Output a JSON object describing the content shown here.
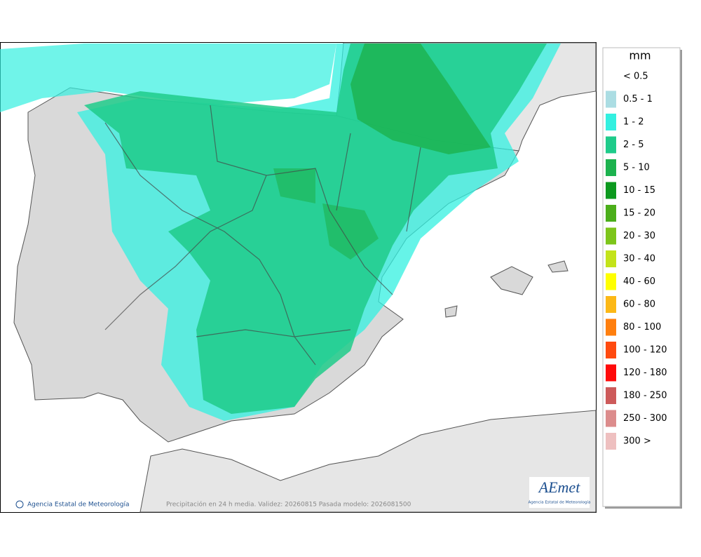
{
  "legend": {
    "unit": "mm",
    "items": [
      {
        "label": "< 0.5",
        "color": "#ffffff"
      },
      {
        "label": "0.5 - 1",
        "color": "#abdde3"
      },
      {
        "label": "1 - 2",
        "color": "#33f0e0"
      },
      {
        "label": "2 - 5",
        "color": "#1ecb8a"
      },
      {
        "label": "5 - 10",
        "color": "#1cb24e"
      },
      {
        "label": "10 - 15",
        "color": "#0c991e"
      },
      {
        "label": "15 - 20",
        "color": "#4bae1a"
      },
      {
        "label": "20 - 30",
        "color": "#7dc51a"
      },
      {
        "label": "30 - 40",
        "color": "#c3e31a"
      },
      {
        "label": "40 - 60",
        "color": "#ffff00"
      },
      {
        "label": "60 - 80",
        "color": "#fcb816"
      },
      {
        "label": "80 - 100",
        "color": "#ff7f0e"
      },
      {
        "label": "100 - 120",
        "color": "#ff4a0f"
      },
      {
        "label": "120 - 180",
        "color": "#ff0a0a"
      },
      {
        "label": "180 - 250",
        "color": "#cd5a5a"
      },
      {
        "label": "250 - 300",
        "color": "#dc8c8c"
      },
      {
        "label": "300 >",
        "color": "#eec0c0"
      }
    ]
  },
  "footer": {
    "agency": "Agencia Estatal de Meteorología",
    "caption": "Precipitación en 24 h media. Validez: 20260815 Pasada modelo: 2026081500"
  },
  "logo": {
    "name": "AEmet",
    "subtitle": "Agencia Estatal de Meteorología"
  }
}
